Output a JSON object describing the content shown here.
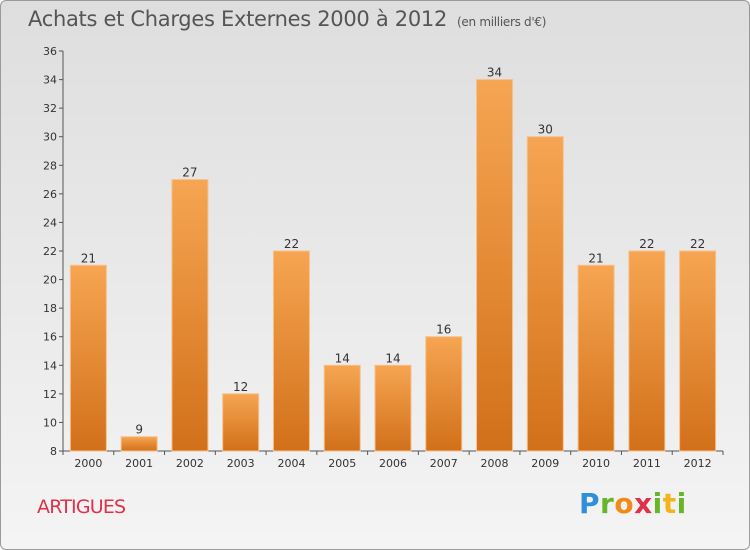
{
  "header": {
    "title": "Achats et Charges Externes 2000 à 2012",
    "unit": "(en milliers d'€)"
  },
  "footer": {
    "commune": "ARTIGUES",
    "brand": "Proxiti"
  },
  "colors": {
    "bar_top": "#f6a552",
    "bar_bottom": "#d2701a",
    "commune_text": "#e0304a"
  },
  "chart_data": {
    "type": "bar",
    "title": "Achats et Charges Externes 2000 à 2012",
    "subtitle": "(en milliers d'€)",
    "xlabel": "",
    "ylabel": "",
    "categories": [
      "2000",
      "2001",
      "2002",
      "2003",
      "2004",
      "2005",
      "2006",
      "2007",
      "2008",
      "2009",
      "2010",
      "2011",
      "2012"
    ],
    "values": [
      21,
      9,
      27,
      12,
      22,
      14,
      14,
      16,
      34,
      30,
      21,
      22,
      22
    ],
    "ylim": [
      8,
      36
    ],
    "yticks": [
      8,
      10,
      12,
      14,
      16,
      18,
      20,
      22,
      24,
      26,
      28,
      30,
      32,
      34,
      36
    ],
    "grid": false,
    "legend": "none"
  }
}
